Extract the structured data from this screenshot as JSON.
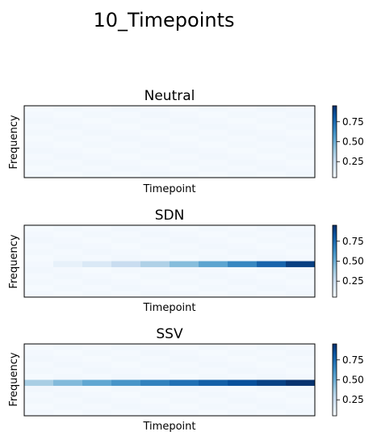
{
  "figure_title": "10_Timepoints",
  "colormap": "Blues",
  "chart_data": [
    {
      "type": "heatmap",
      "title": "Neutral",
      "xlabel": "Timepoint",
      "ylabel": "Frequency",
      "columns": 10,
      "rows": 12,
      "highlight_row": null,
      "highlight_values": [],
      "background_value": 0.06,
      "colorbar_ticks": [
        0.25,
        0.5,
        0.75
      ],
      "colorbar_tick_labels": [
        "0.25",
        "0.50",
        "0.75"
      ],
      "clim": [
        0.05,
        0.95
      ]
    },
    {
      "type": "heatmap",
      "title": "SDN",
      "xlabel": "Timepoint",
      "ylabel": "Frequency",
      "columns": 10,
      "rows": 12,
      "highlight_row": 6,
      "highlight_values": [
        0.07,
        0.12,
        0.18,
        0.26,
        0.34,
        0.44,
        0.54,
        0.65,
        0.77,
        0.9
      ],
      "background_value": 0.06,
      "colorbar_ticks": [
        0.25,
        0.5,
        0.75
      ],
      "colorbar_tick_labels": [
        "0.25",
        "0.50",
        "0.75"
      ],
      "clim": [
        0.05,
        0.95
      ]
    },
    {
      "type": "heatmap",
      "title": "SSV",
      "xlabel": "Timepoint",
      "ylabel": "Frequency",
      "columns": 10,
      "rows": 12,
      "highlight_row": 6,
      "highlight_values": [
        0.36,
        0.45,
        0.53,
        0.6,
        0.67,
        0.73,
        0.79,
        0.84,
        0.89,
        0.94
      ],
      "background_value": 0.06,
      "colorbar_ticks": [
        0.25,
        0.5,
        0.75
      ],
      "colorbar_tick_labels": [
        "0.25",
        "0.50",
        "0.75"
      ],
      "clim": [
        0.05,
        0.95
      ]
    }
  ]
}
